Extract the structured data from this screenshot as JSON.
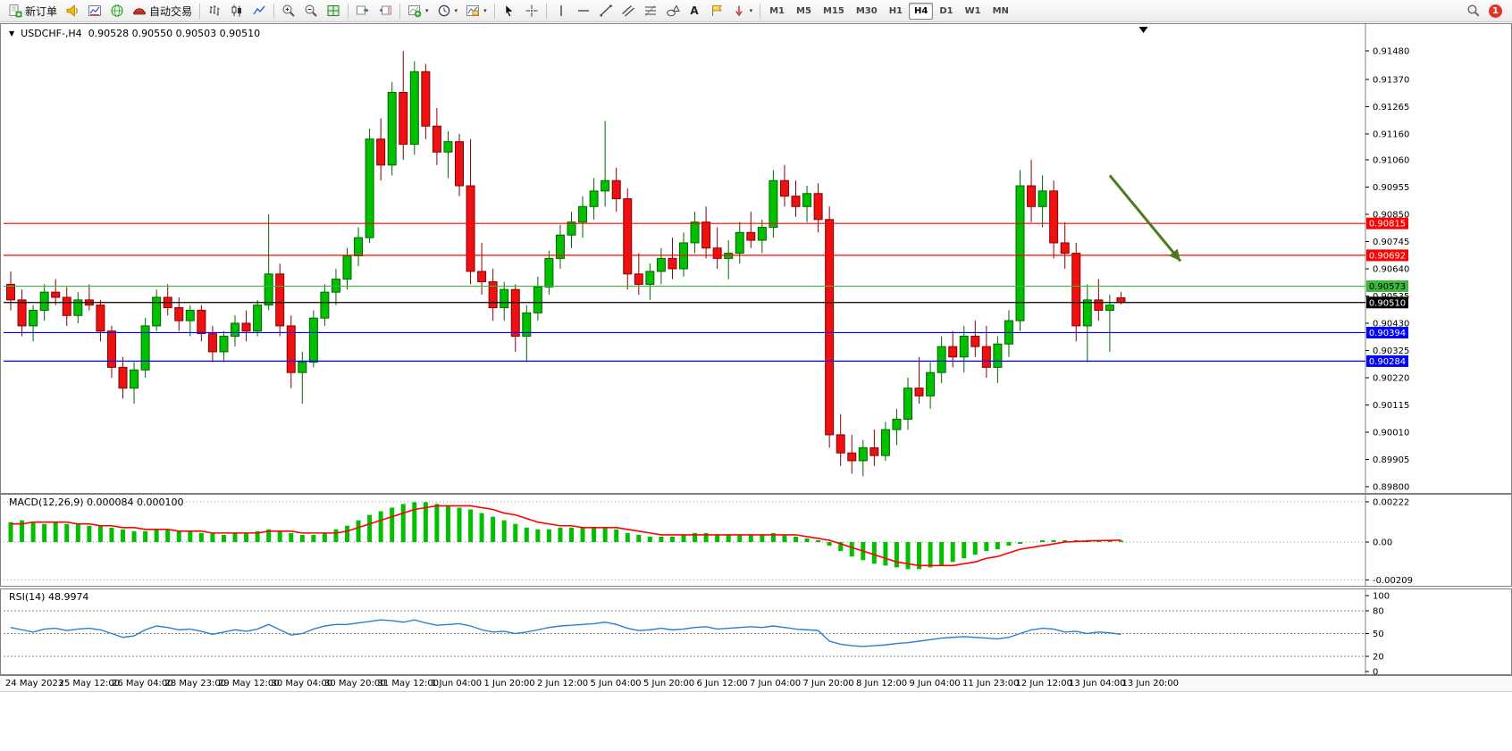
{
  "toolbar": {
    "new_order_label": "新订单",
    "auto_trading_label": "自动交易",
    "timeframes": [
      "M1",
      "M5",
      "M15",
      "M30",
      "H1",
      "H4",
      "D1",
      "W1",
      "MN"
    ],
    "active_timeframe": "H4",
    "notification_count": "1"
  },
  "icons": {
    "collapse_triangle": "▼",
    "caret": "▾",
    "text_tool": "A"
  },
  "chart_header": {
    "symbol_period": "USDCHF-,H4",
    "ohlc": "0.90528 0.90550 0.90503 0.90510"
  },
  "macd_label": "MACD(12,26,9) 0.000084 0.000100",
  "rsi_label": "RSI(14) 48.9974",
  "chart_data": [
    {
      "type": "candlestick",
      "title": "USDCHF-,H4",
      "current_bar": {
        "open": 0.90528,
        "high": 0.9055,
        "low": 0.90503,
        "close": 0.9051
      },
      "ylim": [
        0.898,
        0.9148
      ],
      "y_ticks": [
        0.9148,
        0.9137,
        0.91265,
        0.9116,
        0.9106,
        0.90955,
        0.9085,
        0.90745,
        0.9064,
        0.90535,
        0.9043,
        0.90325,
        0.9022,
        0.90115,
        0.9001,
        0.89905,
        0.898
      ],
      "x_labels": [
        "24 May 2023",
        "25 May 12:00",
        "26 May 04:00",
        "28 May 23:00",
        "29 May 12:00",
        "30 May 04:00",
        "30 May 20:00",
        "31 May 12:00",
        "1 Jun 04:00",
        "1 Jun 20:00",
        "2 Jun 12:00",
        "5 Jun 04:00",
        "5 Jun 20:00",
        "6 Jun 12:00",
        "7 Jun 04:00",
        "7 Jun 20:00",
        "8 Jun 12:00",
        "9 Jun 04:00",
        "11 Jun 23:00",
        "12 Jun 12:00",
        "13 Jun 04:00",
        "13 Jun 20:00"
      ],
      "up_color": "#00c000",
      "up_stroke": "#006600",
      "down_color": "#ee1111",
      "down_stroke": "#880000",
      "candles": [
        [
          0.9058,
          0.9063,
          0.9048,
          0.9052
        ],
        [
          0.9052,
          0.9056,
          0.9038,
          0.9042
        ],
        [
          0.9042,
          0.905,
          0.9036,
          0.9048
        ],
        [
          0.9048,
          0.9058,
          0.9044,
          0.9055
        ],
        [
          0.9055,
          0.906,
          0.905,
          0.9053
        ],
        [
          0.9053,
          0.9057,
          0.9042,
          0.9046
        ],
        [
          0.9046,
          0.9055,
          0.9043,
          0.9052
        ],
        [
          0.9052,
          0.9058,
          0.9048,
          0.905
        ],
        [
          0.905,
          0.9052,
          0.9036,
          0.904
        ],
        [
          0.904,
          0.9042,
          0.9022,
          0.9026
        ],
        [
          0.9026,
          0.903,
          0.9014,
          0.9018
        ],
        [
          0.9018,
          0.9028,
          0.9012,
          0.9025
        ],
        [
          0.9025,
          0.9045,
          0.9022,
          0.9042
        ],
        [
          0.9042,
          0.9056,
          0.904,
          0.9053
        ],
        [
          0.9053,
          0.9058,
          0.9046,
          0.9049
        ],
        [
          0.9049,
          0.9053,
          0.904,
          0.9044
        ],
        [
          0.9044,
          0.905,
          0.9038,
          0.9048
        ],
        [
          0.9048,
          0.905,
          0.9036,
          0.9039
        ],
        [
          0.9039,
          0.9042,
          0.9028,
          0.9032
        ],
        [
          0.9032,
          0.904,
          0.9028,
          0.9038
        ],
        [
          0.9038,
          0.9046,
          0.9034,
          0.9043
        ],
        [
          0.9043,
          0.9048,
          0.9036,
          0.904
        ],
        [
          0.904,
          0.9052,
          0.9038,
          0.905
        ],
        [
          0.905,
          0.9085,
          0.9048,
          0.9062
        ],
        [
          0.9062,
          0.9066,
          0.9038,
          0.9042
        ],
        [
          0.9042,
          0.9046,
          0.9018,
          0.9024
        ],
        [
          0.9024,
          0.9032,
          0.9012,
          0.9028
        ],
        [
          0.9028,
          0.9048,
          0.9026,
          0.9045
        ],
        [
          0.9045,
          0.9058,
          0.9042,
          0.9055
        ],
        [
          0.9055,
          0.9064,
          0.905,
          0.906
        ],
        [
          0.906,
          0.9072,
          0.9056,
          0.9069
        ],
        [
          0.9069,
          0.908,
          0.9065,
          0.9076
        ],
        [
          0.9076,
          0.9118,
          0.9074,
          0.9114
        ],
        [
          0.9114,
          0.9122,
          0.9098,
          0.9104
        ],
        [
          0.9104,
          0.9136,
          0.91,
          0.9132
        ],
        [
          0.9132,
          0.9148,
          0.9106,
          0.9112
        ],
        [
          0.9112,
          0.9144,
          0.9108,
          0.914
        ],
        [
          0.914,
          0.9143,
          0.9114,
          0.9119
        ],
        [
          0.9119,
          0.9126,
          0.9104,
          0.9109
        ],
        [
          0.9109,
          0.9117,
          0.9099,
          0.9113
        ],
        [
          0.9113,
          0.9116,
          0.9092,
          0.9096
        ],
        [
          0.9096,
          0.9114,
          0.9058,
          0.9063
        ],
        [
          0.9063,
          0.9074,
          0.9054,
          0.9059
        ],
        [
          0.9059,
          0.9064,
          0.9044,
          0.9049
        ],
        [
          0.9049,
          0.9059,
          0.9044,
          0.9056
        ],
        [
          0.9056,
          0.9058,
          0.9032,
          0.9038
        ],
        [
          0.9038,
          0.905,
          0.9028,
          0.9047
        ],
        [
          0.9047,
          0.9061,
          0.9044,
          0.9057
        ],
        [
          0.9057,
          0.9071,
          0.9054,
          0.9068
        ],
        [
          0.9068,
          0.9081,
          0.9064,
          0.9077
        ],
        [
          0.9077,
          0.9086,
          0.9072,
          0.9082
        ],
        [
          0.9082,
          0.9092,
          0.9076,
          0.9088
        ],
        [
          0.9088,
          0.9099,
          0.9083,
          0.9094
        ],
        [
          0.9094,
          0.9121,
          0.9088,
          0.9098
        ],
        [
          0.9098,
          0.9103,
          0.9086,
          0.9091
        ],
        [
          0.9091,
          0.9095,
          0.9056,
          0.9062
        ],
        [
          0.9062,
          0.907,
          0.9054,
          0.9058
        ],
        [
          0.9058,
          0.9066,
          0.9052,
          0.9063
        ],
        [
          0.9063,
          0.9072,
          0.9058,
          0.9068
        ],
        [
          0.9068,
          0.9076,
          0.906,
          0.9064
        ],
        [
          0.9064,
          0.9078,
          0.9061,
          0.9074
        ],
        [
          0.9074,
          0.9086,
          0.907,
          0.9082
        ],
        [
          0.9082,
          0.9088,
          0.9068,
          0.9072
        ],
        [
          0.9072,
          0.908,
          0.9064,
          0.9068
        ],
        [
          0.9068,
          0.9075,
          0.906,
          0.907
        ],
        [
          0.907,
          0.9082,
          0.9066,
          0.9078
        ],
        [
          0.9078,
          0.9086,
          0.9072,
          0.9075
        ],
        [
          0.9075,
          0.9083,
          0.907,
          0.908
        ],
        [
          0.908,
          0.9102,
          0.9076,
          0.9098
        ],
        [
          0.9098,
          0.9104,
          0.9088,
          0.9092
        ],
        [
          0.9092,
          0.9098,
          0.9084,
          0.9088
        ],
        [
          0.9088,
          0.9096,
          0.9082,
          0.9093
        ],
        [
          0.9093,
          0.9097,
          0.9078,
          0.9083
        ],
        [
          0.9083,
          0.9088,
          0.8995,
          0.9
        ],
        [
          0.9,
          0.9008,
          0.8988,
          0.8993
        ],
        [
          0.8993,
          0.9,
          0.8985,
          0.899
        ],
        [
          0.899,
          0.8998,
          0.8984,
          0.8995
        ],
        [
          0.8995,
          0.9002,
          0.8988,
          0.8992
        ],
        [
          0.8992,
          0.9005,
          0.899,
          0.9002
        ],
        [
          0.9002,
          0.901,
          0.8996,
          0.9006
        ],
        [
          0.9006,
          0.9022,
          0.9002,
          0.9018
        ],
        [
          0.9018,
          0.903,
          0.9012,
          0.9015
        ],
        [
          0.9015,
          0.9028,
          0.901,
          0.9024
        ],
        [
          0.9024,
          0.9038,
          0.902,
          0.9034
        ],
        [
          0.9034,
          0.904,
          0.9026,
          0.903
        ],
        [
          0.903,
          0.9042,
          0.9024,
          0.9038
        ],
        [
          0.9038,
          0.9044,
          0.903,
          0.9034
        ],
        [
          0.9034,
          0.9042,
          0.9022,
          0.9026
        ],
        [
          0.9026,
          0.9038,
          0.902,
          0.9035
        ],
        [
          0.9035,
          0.9048,
          0.903,
          0.9044
        ],
        [
          0.9044,
          0.9102,
          0.904,
          0.9096
        ],
        [
          0.9096,
          0.9106,
          0.9082,
          0.9088
        ],
        [
          0.9088,
          0.91,
          0.908,
          0.9094
        ],
        [
          0.9094,
          0.9098,
          0.9068,
          0.9074
        ],
        [
          0.9074,
          0.9082,
          0.9064,
          0.907
        ],
        [
          0.907,
          0.9074,
          0.9036,
          0.9042
        ],
        [
          0.9042,
          0.9058,
          0.9028,
          0.9052
        ],
        [
          0.9052,
          0.906,
          0.9044,
          0.9048
        ],
        [
          0.9048,
          0.9054,
          0.9032,
          0.905
        ],
        [
          0.90528,
          0.9055,
          0.90503,
          0.9051
        ]
      ],
      "lines": [
        {
          "price": 0.90815,
          "color": "#ff0000",
          "label": "0.90815",
          "text": "#ffffff"
        },
        {
          "price": 0.90692,
          "color": "#ff0000",
          "label": "0.90692",
          "text": "#ffffff"
        },
        {
          "price": 0.90573,
          "color": "#3cb83c",
          "label": "0.90573",
          "text": "#000000"
        },
        {
          "price": 0.9051,
          "color": "#000000",
          "label": "0.90510",
          "text": "#ffffff"
        },
        {
          "price": 0.90394,
          "color": "#0000ff",
          "label": "0.90394",
          "text": "#ffffff"
        },
        {
          "price": 0.90284,
          "color": "#0000ff",
          "label": "0.90284",
          "text": "#ffffff"
        }
      ],
      "arrow": {
        "bar_start": 98,
        "price_start": 0.91,
        "bar_end": 104.3,
        "price_end": 0.9067,
        "color": "#4b7a1f"
      },
      "marker_bar": 101
    },
    {
      "type": "bar",
      "name": "MACD",
      "label": "MACD(12,26,9) 0.000084 0.000100",
      "value_main": 8.4e-05,
      "value_signal": 0.0001,
      "bar_color": "#00c000",
      "signal_color": "#ff0000",
      "y_ticks": [
        {
          "v": 0.00222,
          "label": "0.00222"
        },
        {
          "v": 0,
          "label": "0.00"
        },
        {
          "v": -0.00209,
          "label": "-0.00209"
        }
      ],
      "values": [
        0.0011,
        0.0012,
        0.0011,
        0.001,
        0.0011,
        0.001,
        0.001,
        0.0009,
        0.0009,
        0.0008,
        0.0007,
        0.0006,
        0.0006,
        0.0007,
        0.0007,
        0.0006,
        0.0006,
        0.0005,
        0.0005,
        0.0004,
        0.0005,
        0.0005,
        0.0006,
        0.0007,
        0.0006,
        0.0005,
        0.0004,
        0.0004,
        0.0005,
        0.0007,
        0.0009,
        0.0012,
        0.0015,
        0.0017,
        0.0019,
        0.0021,
        0.0022,
        0.0022,
        0.0021,
        0.002,
        0.0019,
        0.0018,
        0.0016,
        0.0014,
        0.0012,
        0.001,
        0.0008,
        0.0007,
        0.0007,
        0.0008,
        0.0008,
        0.0008,
        0.0008,
        0.0008,
        0.0007,
        0.0005,
        0.0004,
        0.0003,
        0.0003,
        0.0003,
        0.0004,
        0.0005,
        0.0005,
        0.0004,
        0.0004,
        0.0004,
        0.0004,
        0.0004,
        0.0005,
        0.0004,
        0.0003,
        0.0002,
        0.0001,
        -0.0002,
        -0.0005,
        -0.0008,
        -0.001,
        -0.0012,
        -0.0013,
        -0.0014,
        -0.0015,
        -0.0015,
        -0.0014,
        -0.0013,
        -0.0011,
        -0.0009,
        -0.0007,
        -0.0005,
        -0.0004,
        -0.0002,
        -0.0001,
        0.0,
        0.0001,
        0.0001,
        0.0001,
        0.0001,
        8e-05,
        8e-05,
        9e-05,
        8.4e-05
      ],
      "signal": [
        0.001,
        0.001,
        0.0011,
        0.0011,
        0.0011,
        0.0011,
        0.001,
        0.001,
        0.0009,
        0.0009,
        0.0008,
        0.0008,
        0.0007,
        0.0007,
        0.0007,
        0.0006,
        0.0006,
        0.0006,
        0.0005,
        0.0005,
        0.0005,
        0.0005,
        0.0005,
        0.0006,
        0.0006,
        0.0006,
        0.0005,
        0.0005,
        0.0005,
        0.0005,
        0.0006,
        0.0008,
        0.001,
        0.0012,
        0.0014,
        0.0016,
        0.0018,
        0.0019,
        0.002,
        0.002,
        0.002,
        0.002,
        0.0019,
        0.0018,
        0.0016,
        0.0015,
        0.0013,
        0.0011,
        0.001,
        0.0009,
        0.0009,
        0.0008,
        0.0008,
        0.0008,
        0.0008,
        0.0007,
        0.0006,
        0.0005,
        0.0004,
        0.0004,
        0.0004,
        0.0004,
        0.0004,
        0.0004,
        0.0004,
        0.0004,
        0.0004,
        0.0004,
        0.0004,
        0.0004,
        0.0004,
        0.0003,
        0.0002,
        0.0001,
        -0.0001,
        -0.0003,
        -0.0005,
        -0.0007,
        -0.0009,
        -0.0011,
        -0.0012,
        -0.0013,
        -0.0013,
        -0.0013,
        -0.0013,
        -0.0012,
        -0.0011,
        -0.0009,
        -0.0008,
        -0.0006,
        -0.0004,
        -0.0003,
        -0.0002,
        -0.0001,
        0.0,
        3e-05,
        6e-05,
        8e-05,
        9e-05,
        0.0001
      ]
    },
    {
      "type": "line",
      "name": "RSI",
      "label": "RSI(14) 48.9974",
      "period": 14,
      "value": 48.9974,
      "line_color": "#2a7fd4",
      "ylim": [
        0,
        100
      ],
      "y_ticks": [
        100,
        80,
        50,
        20,
        0
      ],
      "levels": [
        80,
        50,
        20
      ],
      "values": [
        58,
        55,
        52,
        56,
        57,
        54,
        56,
        57,
        55,
        50,
        45,
        47,
        55,
        60,
        58,
        55,
        56,
        53,
        49,
        52,
        55,
        53,
        56,
        62,
        55,
        48,
        50,
        56,
        60,
        62,
        62,
        64,
        66,
        68,
        67,
        65,
        68,
        64,
        61,
        62,
        63,
        60,
        55,
        52,
        53,
        50,
        52,
        55,
        58,
        60,
        61,
        62,
        63,
        65,
        62,
        57,
        54,
        55,
        57,
        55,
        56,
        58,
        59,
        56,
        57,
        58,
        59,
        58,
        60,
        58,
        56,
        55,
        54,
        40,
        36,
        34,
        33,
        34,
        35,
        37,
        38,
        40,
        42,
        44,
        45,
        46,
        45,
        44,
        43,
        45,
        50,
        55,
        57,
        56,
        52,
        53,
        50,
        52,
        51,
        49
      ]
    }
  ]
}
